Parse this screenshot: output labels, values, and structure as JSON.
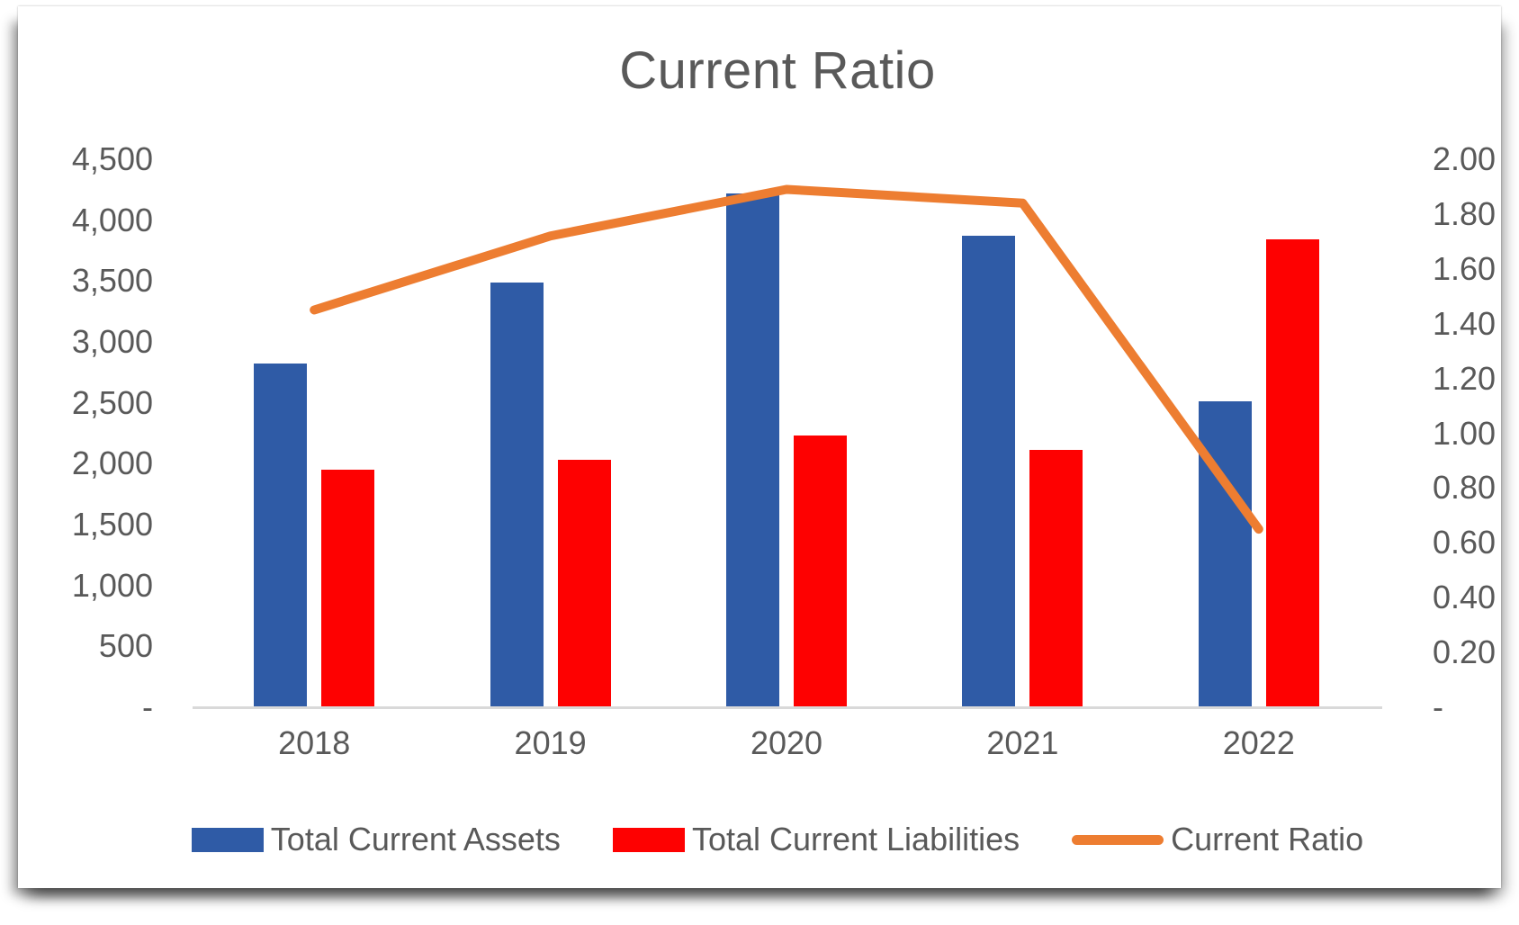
{
  "title": "Current Ratio",
  "colors": {
    "assets_bar": "#2F5BA6",
    "liabilities_bar": "#FE0101",
    "ratio_line": "#ED7D31",
    "text": "#595959",
    "axis_line": "#D9D9D9",
    "background": "#FFFFFF"
  },
  "chart_data": {
    "type": "combo: grouped bar + line, dual y-axes",
    "title": "Current Ratio",
    "categories": [
      "2018",
      "2019",
      "2020",
      "2021",
      "2022"
    ],
    "series": [
      {
        "name": "Total Current Assets",
        "chart": "bar",
        "axis": "left",
        "color": "#2F5BA6",
        "values": [
          2820,
          3490,
          4220,
          3870,
          2510
        ]
      },
      {
        "name": "Total Current Liabilities",
        "chart": "bar",
        "axis": "left",
        "color": "#FE0101",
        "values": [
          1950,
          2030,
          2230,
          2110,
          3840
        ]
      },
      {
        "name": "Current Ratio",
        "chart": "line",
        "axis": "right",
        "color": "#ED7D31",
        "values": [
          1.45,
          1.72,
          1.89,
          1.84,
          0.65
        ]
      }
    ],
    "left_axis": {
      "range": [
        0,
        4500
      ],
      "interval": 500,
      "tick_labels": [
        "4,500",
        "4,000",
        "3,500",
        "3,000",
        "2,500",
        "2,000",
        "1,500",
        "1,000",
        "500",
        "-"
      ]
    },
    "right_axis": {
      "range": [
        0,
        2.0
      ],
      "interval": 0.2,
      "tick_labels": [
        "2.00",
        "1.80",
        "1.60",
        "1.40",
        "1.20",
        "1.00",
        "0.80",
        "0.60",
        "0.40",
        "0.20",
        "-"
      ]
    },
    "grid": false,
    "legend_position": "bottom"
  }
}
